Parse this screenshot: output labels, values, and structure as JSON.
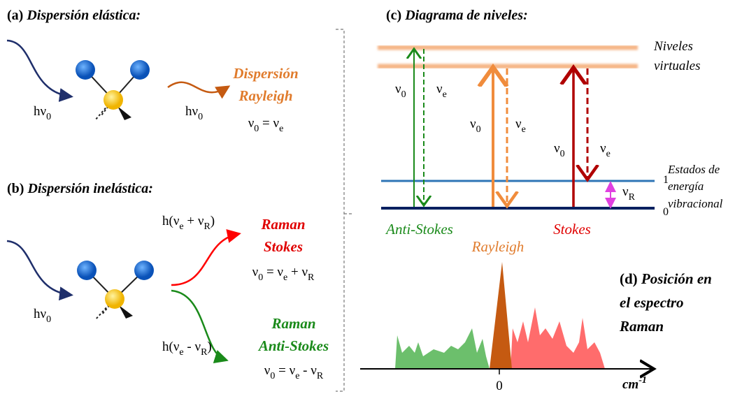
{
  "panel_a": {
    "label": "(a)",
    "title": "Dispersión elástica:",
    "photon_in": [
      {
        "t": "hν"
      },
      {
        "t": "0",
        "sub": true
      }
    ],
    "photon_out": [
      {
        "t": "hν"
      },
      {
        "t": "0",
        "sub": true
      }
    ],
    "process": [
      "Dispersión",
      "Rayleigh"
    ],
    "equation": [
      {
        "t": "ν"
      },
      {
        "t": "0",
        "sub": true
      },
      {
        "t": " = ν"
      },
      {
        "t": "e",
        "sub": true
      }
    ]
  },
  "panel_b": {
    "label": "(b)",
    "title": "Dispersión inelástica:",
    "photon_in": [
      {
        "t": "hν"
      },
      {
        "t": "0",
        "sub": true
      }
    ],
    "stokes_photon": [
      {
        "t": "h(ν"
      },
      {
        "t": "e",
        "sub": true
      },
      {
        "t": " + ν"
      },
      {
        "t": "R",
        "sub": true
      },
      {
        "t": ")"
      }
    ],
    "stokes_name": [
      "Raman",
      "Stokes"
    ],
    "stokes_equation": [
      {
        "t": "ν"
      },
      {
        "t": "0",
        "sub": true
      },
      {
        "t": " = ν"
      },
      {
        "t": "e",
        "sub": true
      },
      {
        "t": " + ν"
      },
      {
        "t": "R",
        "sub": true
      }
    ],
    "anti_photon": [
      {
        "t": "h(ν"
      },
      {
        "t": "e",
        "sub": true
      },
      {
        "t": " - ν"
      },
      {
        "t": "R",
        "sub": true
      },
      {
        "t": ")"
      }
    ],
    "anti_name": [
      "Raman",
      "Anti-Stokes"
    ],
    "anti_equation": [
      {
        "t": "ν"
      },
      {
        "t": "0",
        "sub": true
      },
      {
        "t": " = ν"
      },
      {
        "t": "e",
        "sub": true
      },
      {
        "t": " - ν"
      },
      {
        "t": "R",
        "sub": true
      }
    ]
  },
  "panel_c": {
    "label": "(c)",
    "title": "Diagrama de niveles:",
    "virtual_label": [
      "Niveles",
      "virtuales"
    ],
    "state_label": [
      "Estados de",
      "energía",
      "vibracional"
    ],
    "level_1": "1",
    "level_0": "0",
    "nu0": [
      {
        "t": "ν"
      },
      {
        "t": "0",
        "sub": true
      }
    ],
    "nue": [
      {
        "t": "ν"
      },
      {
        "t": "e",
        "sub": true
      }
    ],
    "nuR": [
      {
        "t": "ν"
      },
      {
        "t": "R",
        "sub": true
      }
    ],
    "anti_stokes": "Anti-Stokes",
    "rayleigh": "Rayleigh",
    "stokes": "Stokes"
  },
  "panel_d": {
    "label": "(d)",
    "title": [
      "Posición en",
      "el espectro",
      "Raman"
    ],
    "axis_unit": [
      {
        "t": "cm"
      },
      {
        "t": "-1",
        "sup": true
      }
    ],
    "zero": "0"
  }
}
